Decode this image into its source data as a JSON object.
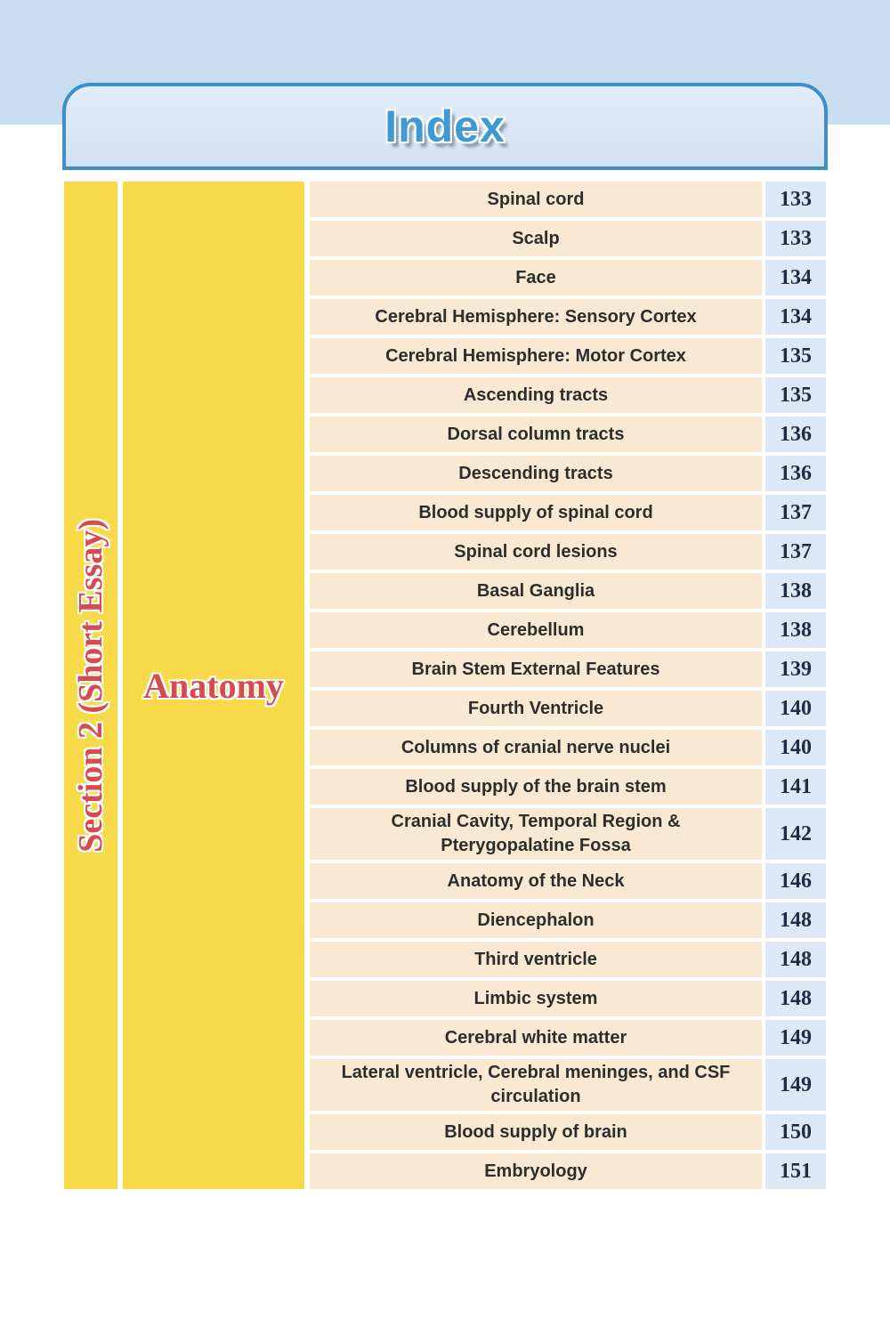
{
  "header": {
    "title": "Index"
  },
  "section": {
    "label": "Section 2 (Short Essay)"
  },
  "category": {
    "label": "Anatomy"
  },
  "index": {
    "rows": [
      {
        "topic": "Spinal cord",
        "page": "133"
      },
      {
        "topic": "Scalp",
        "page": "133"
      },
      {
        "topic": "Face",
        "page": "134"
      },
      {
        "topic": "Cerebral Hemisphere: Sensory Cortex",
        "page": "134"
      },
      {
        "topic": "Cerebral Hemisphere: Motor Cortex",
        "page": "135"
      },
      {
        "topic": "Ascending tracts",
        "page": "135"
      },
      {
        "topic": "Dorsal column tracts",
        "page": "136"
      },
      {
        "topic": "Descending tracts",
        "page": "136"
      },
      {
        "topic": "Blood supply of spinal cord",
        "page": "137"
      },
      {
        "topic": "Spinal cord lesions",
        "page": "137"
      },
      {
        "topic": "Basal Ganglia",
        "page": "138"
      },
      {
        "topic": "Cerebellum",
        "page": "138"
      },
      {
        "topic": "Brain Stem External Features",
        "page": "139"
      },
      {
        "topic": "Fourth Ventricle",
        "page": "140"
      },
      {
        "topic": "Columns of cranial nerve nuclei",
        "page": "140"
      },
      {
        "topic": "Blood supply of the brain stem",
        "page": "141"
      },
      {
        "topic": "Cranial Cavity, Temporal Region & Pterygopalatine Fossa",
        "page": "142"
      },
      {
        "topic": "Anatomy of the Neck",
        "page": "146"
      },
      {
        "topic": "Diencephalon",
        "page": "148"
      },
      {
        "topic": "Third ventricle",
        "page": "148"
      },
      {
        "topic": "Limbic system",
        "page": "148"
      },
      {
        "topic": "Cerebral white matter",
        "page": "149"
      },
      {
        "topic": "Lateral ventricle, Cerebral meninges, and CSF circulation",
        "page": "149"
      },
      {
        "topic": "Blood supply of brain",
        "page": "150"
      },
      {
        "topic": "Embryology",
        "page": "151"
      }
    ]
  },
  "colors": {
    "banner_blue": "#c9ddf0",
    "header_border_blue": "#3c8fc7",
    "title_blue": "#3d9ad4",
    "bar_yellow": "#f7d94a",
    "topic_peach": "#fae9d2",
    "page_cell_blue": "#dce8f5",
    "accent_red": "#d84a52",
    "page_number_navy": "#1f2c46"
  }
}
